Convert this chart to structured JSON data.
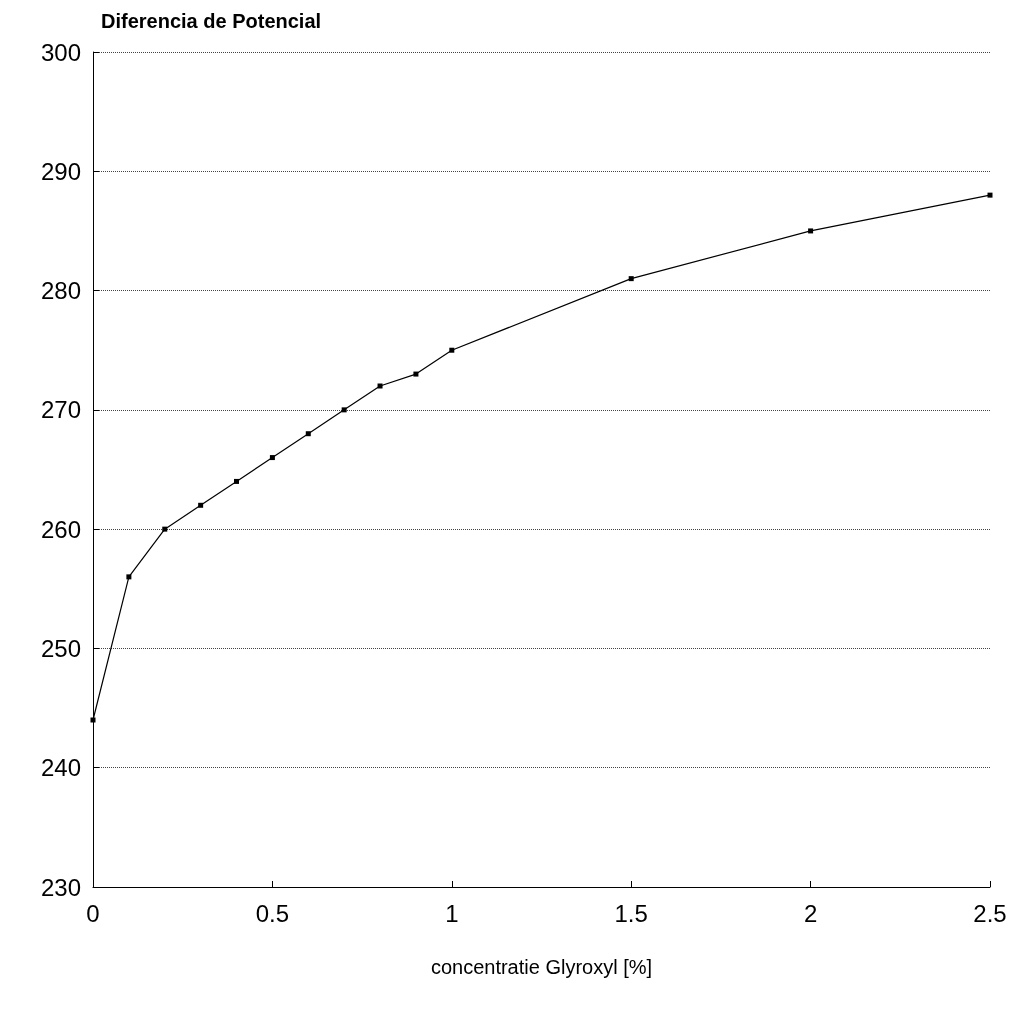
{
  "chart_data": {
    "type": "line",
    "title": "Diferencia de Potencial",
    "xlabel": "concentratie Glyroxyl [%]",
    "x": [
      0,
      0.1,
      0.2,
      0.3,
      0.4,
      0.5,
      0.6,
      0.7,
      0.8,
      0.9,
      1,
      1.5,
      2,
      2.5
    ],
    "series": [
      {
        "color": "#000000",
        "values": [
          244,
          256,
          260,
          262,
          264,
          266,
          268,
          270,
          272,
          273,
          275,
          281,
          285,
          288
        ]
      }
    ],
    "xlim": [
      0,
      2.5
    ],
    "xticks": [
      0,
      0.5,
      1,
      1.5,
      2,
      2.5
    ],
    "ylim": [
      230,
      300
    ],
    "yticks": [
      230,
      240,
      250,
      260,
      270,
      280,
      290,
      300
    ],
    "grid": "y",
    "marker": "square",
    "line_style": "solid"
  }
}
